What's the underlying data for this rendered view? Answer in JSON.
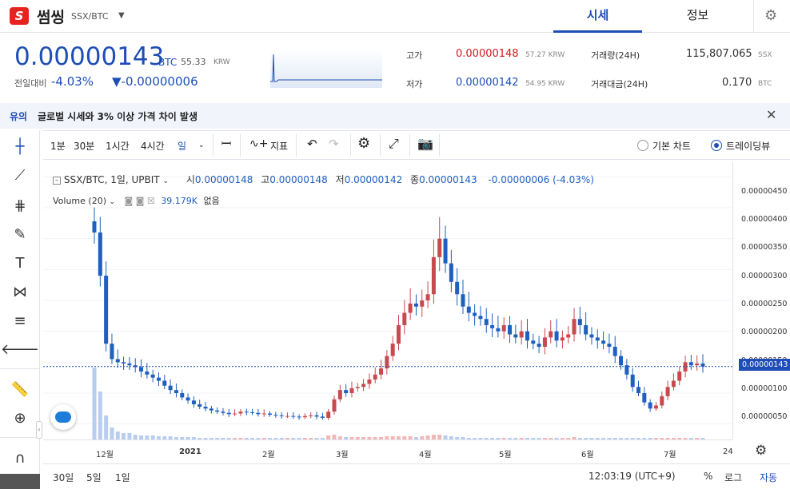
{
  "header": {
    "logo_letter": "S",
    "coin_name": "썸씽",
    "pair": "SSX/BTC",
    "tabs": [
      {
        "label": "시세",
        "active": true
      },
      {
        "label": "정보",
        "active": false
      }
    ]
  },
  "price": {
    "current": "0.00000143",
    "unit": "BTC",
    "krw": "55.33",
    "krw_unit": "KRW",
    "change_label": "전일대비",
    "change_pct": "-4.03%",
    "change_amt": "▼-0.00000006"
  },
  "stats": {
    "high_label": "고가",
    "high": "0.00000148",
    "high_krw": "57.27 KRW",
    "low_label": "저가",
    "low": "0.00000142",
    "low_krw": "54.95 KRW",
    "vol_label": "거래량(24H)",
    "vol": "115,807.065",
    "vol_unit": "SSX",
    "amt_label": "거래대금(24H)",
    "amt": "0.170",
    "amt_unit": "BTC"
  },
  "banner": {
    "tag": "유의",
    "text": "글로벌 시세와 3% 이상 가격 차이 발생"
  },
  "toolbar": {
    "intervals": [
      "1분",
      "30분",
      "1시간",
      "4시간"
    ],
    "active_interval": "일",
    "indicators_label": "지표",
    "radio_basic": "기본 차트",
    "radio_tv": "트레이딩뷰"
  },
  "legend": {
    "symbol": "SSX/BTC, 1일, UPBIT",
    "o_label": "시",
    "o": "0.00000148",
    "h_label": "고",
    "h": "0.00000148",
    "l_label": "저",
    "l": "0.00000142",
    "c_label": "종",
    "c": "0.00000143",
    "chg": "-0.00000006 (-4.03%)",
    "volume_label": "Volume (20)",
    "volume_val": "39.179K",
    "volume_extra": "없음"
  },
  "colors": {
    "up": "#c84a4f",
    "down": "#1f5fbf",
    "accent": "#1d4db5",
    "volume": "#b9cdee"
  },
  "chart_data": {
    "type": "candlestick",
    "y_ticks": [
      "0.00000450",
      "0.00000400",
      "0.00000350",
      "0.00000300",
      "0.00000250",
      "0.00000200",
      "0.00000150",
      "0.00000100",
      "0.00000050"
    ],
    "ylim": [
      2.5e-07,
      4.75e-06
    ],
    "last_price": "0.00000143",
    "x_ticks": [
      "12월",
      "2021",
      "2월",
      "3월",
      "4월",
      "5월",
      "6월",
      "7월",
      "24"
    ],
    "closes": [
      3.6,
      2.9,
      1.8,
      1.55,
      1.5,
      1.48,
      1.45,
      1.42,
      1.35,
      1.3,
      1.25,
      1.2,
      1.12,
      1.05,
      1.0,
      0.93,
      0.88,
      0.82,
      0.78,
      0.75,
      0.72,
      0.7,
      0.68,
      0.66,
      0.67,
      0.7,
      0.69,
      0.68,
      0.66,
      0.67,
      0.65,
      0.64,
      0.63,
      0.63,
      0.62,
      0.61,
      0.63,
      0.64,
      0.62,
      0.6,
      0.7,
      0.9,
      1.05,
      1.0,
      1.08,
      1.1,
      1.15,
      1.22,
      1.3,
      1.4,
      1.6,
      1.8,
      2.1,
      2.3,
      2.45,
      2.4,
      2.5,
      2.6,
      3.2,
      3.5,
      3.1,
      2.8,
      2.6,
      2.4,
      2.3,
      2.25,
      2.2,
      2.1,
      2.05,
      2.0,
      2.1,
      1.95,
      1.9,
      2.0,
      1.85,
      1.8,
      1.75,
      1.9,
      2.0,
      1.85,
      1.9,
      1.95,
      2.2,
      2.1,
      1.95,
      1.9,
      1.85,
      1.8,
      1.75,
      1.6,
      1.45,
      1.3,
      1.1,
      1.0,
      0.85,
      0.75,
      0.8,
      0.95,
      1.1,
      1.2,
      1.35,
      1.5,
      1.45,
      1.48,
      1.43
    ],
    "volume_rel": [
      0.9,
      0.6,
      0.3,
      0.15,
      0.1,
      0.08,
      0.08,
      0.06,
      0.05,
      0.05,
      0.05,
      0.04,
      0.04,
      0.04,
      0.03,
      0.03,
      0.03,
      0.03,
      0.02,
      0.02,
      0.02,
      0.02,
      0.02,
      0.02,
      0.02,
      0.02,
      0.02,
      0.02,
      0.02,
      0.02,
      0.02,
      0.02,
      0.02,
      0.02,
      0.02,
      0.02,
      0.02,
      0.02,
      0.02,
      0.02,
      0.05,
      0.06,
      0.04,
      0.03,
      0.03,
      0.03,
      0.03,
      0.03,
      0.03,
      0.03,
      0.04,
      0.04,
      0.04,
      0.04,
      0.04,
      0.03,
      0.04,
      0.05,
      0.06,
      0.06,
      0.05,
      0.04,
      0.03,
      0.03,
      0.02,
      0.02,
      0.02,
      0.02,
      0.02,
      0.02,
      0.02,
      0.02,
      0.02,
      0.02,
      0.02,
      0.02,
      0.02,
      0.02,
      0.02,
      0.02,
      0.02,
      0.02,
      0.03,
      0.02,
      0.02,
      0.02,
      0.02,
      0.02,
      0.02,
      0.02,
      0.02,
      0.02,
      0.02,
      0.02,
      0.02,
      0.02,
      0.02,
      0.02,
      0.02,
      0.02,
      0.02,
      0.02,
      0.02,
      0.02,
      0.02
    ]
  },
  "bottom": {
    "ranges": [
      "30일",
      "5일",
      "1일"
    ],
    "clock": "12:03:19 (UTC+9)",
    "pct": "%",
    "log": "로그",
    "auto": "자동"
  }
}
